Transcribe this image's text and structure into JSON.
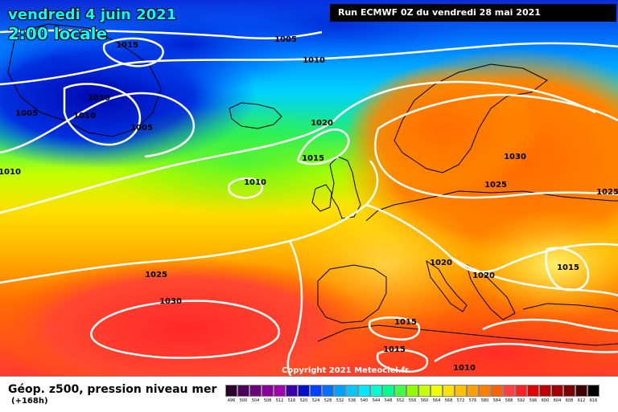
{
  "title": {
    "date": "vendredi 4 juin 2021",
    "time": "2:00 locale"
  },
  "run_info": "Run ECMWF 0Z du vendredi 28 mai 2021",
  "copyright": "Copyright 2021 Meteociel.fr",
  "legend": {
    "title": "Géop. z500, pression niveau mer",
    "subtitle": "(+168h)",
    "values": [
      "496",
      "500",
      "504",
      "508",
      "512",
      "516",
      "520",
      "524",
      "528",
      "532",
      "536",
      "540",
      "544",
      "548",
      "552",
      "556",
      "560",
      "564",
      "568",
      "572",
      "576",
      "580",
      "584",
      "588",
      "592",
      "596",
      "600",
      "604",
      "608",
      "612",
      "616"
    ],
    "colors": [
      "#2b0030",
      "#4b0059",
      "#6a007a",
      "#8a0099",
      "#a200b0",
      "#3a00a8",
      "#0010c8",
      "#0040ff",
      "#0070ff",
      "#00a0ff",
      "#00c8ff",
      "#00e8ff",
      "#00ffd0",
      "#00ff90",
      "#40ff40",
      "#90ff00",
      "#c8ff00",
      "#f0ff00",
      "#ffe000",
      "#ffc000",
      "#ffa000",
      "#ff8000",
      "#ff6000",
      "#ff4040",
      "#ff2020",
      "#e00000",
      "#c00000",
      "#a00000",
      "#800000",
      "#400000",
      "#000000"
    ]
  },
  "isobar_labels": [
    "1005",
    "1015",
    "1010",
    "1010",
    "1005",
    "1005",
    "1010",
    "1020",
    "1015",
    "1010",
    "1010",
    "1030",
    "1025",
    "1025",
    "1020",
    "1020",
    "1015",
    "1025",
    "1030",
    "1015",
    "1015",
    "1010"
  ]
}
